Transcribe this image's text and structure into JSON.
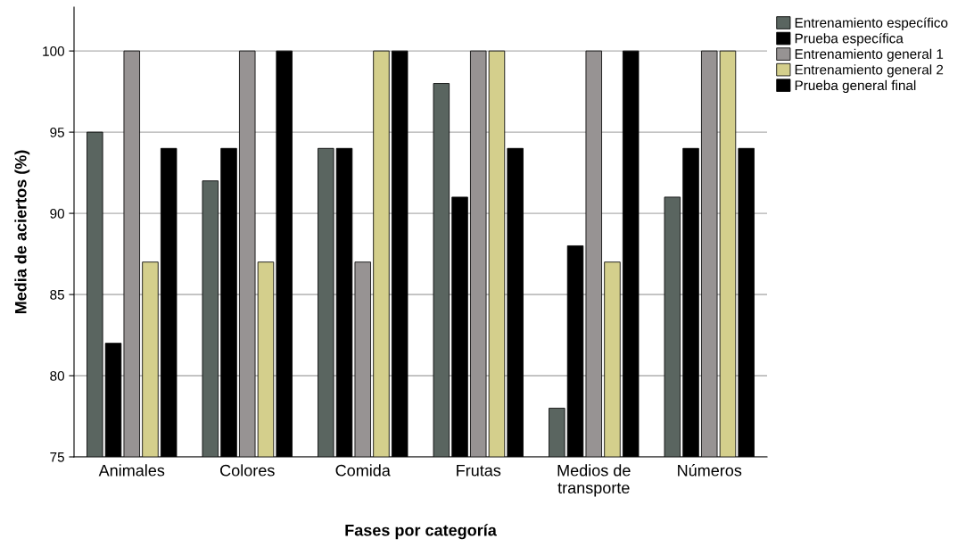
{
  "chart_data": {
    "type": "bar",
    "xlabel": "Fases por categoría",
    "ylabel": "Media de aciertos (%)",
    "categories": [
      "Animales",
      "Colores",
      "Comida",
      "Frutas",
      "Medios de\ntransporte",
      "Números"
    ],
    "series": [
      {
        "name": "Entrenamiento específico",
        "color": "#5a6560",
        "values": [
          95,
          92,
          94,
          98,
          78,
          91
        ]
      },
      {
        "name": "Prueba específica",
        "color": "#000000",
        "values": [
          82,
          94,
          94,
          91,
          88,
          94
        ]
      },
      {
        "name": "Entrenamiento general 1",
        "color": "#979393",
        "values": [
          100,
          100,
          87,
          100,
          100,
          100
        ]
      },
      {
        "name": "Entrenamiento general 2",
        "color": "#d4cf8c",
        "values": [
          87,
          87,
          100,
          100,
          87,
          100
        ]
      },
      {
        "name": "Prueba general final",
        "color": "#000000",
        "values": [
          94,
          100,
          100,
          94,
          100,
          94
        ]
      }
    ],
    "ylim": [
      75,
      102.7
    ],
    "yticks": [
      75,
      80,
      85,
      90,
      95,
      100
    ],
    "grid": "y",
    "legend": "top right"
  }
}
